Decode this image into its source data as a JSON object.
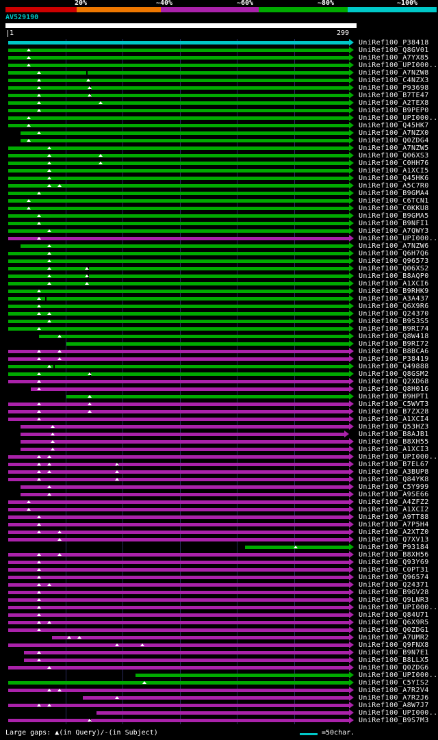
{
  "colors": {
    "red": "#cc0000",
    "orange": "#ee7700",
    "purple": "#aa22aa",
    "green": "#00aa00",
    "cyan": "#00c8c8",
    "white": "#ffffff",
    "grid": "#2b2b5e"
  },
  "scale": {
    "segments": [
      {
        "label": "20%",
        "color": "red"
      },
      {
        "label": "~40%",
        "color": "orange"
      },
      {
        "label": "~60%",
        "color": "purple"
      },
      {
        "label": "~80%",
        "color": "green"
      },
      {
        "label": "~100%",
        "color": "cyan"
      }
    ]
  },
  "query": {
    "name": "AV529190",
    "ruler_start": "1",
    "ruler_end": "299"
  },
  "legend": {
    "gaps_text": "Large gaps: ▲(in Query)/-(in Subject)",
    "grid_text": "=50char."
  },
  "chart_data": {
    "type": "bar",
    "query_length": 299,
    "x_range": [
      1,
      299
    ],
    "identity_bins": [
      "20%",
      "~40%",
      "~60%",
      "~80%",
      "~100%"
    ],
    "grid_spacing_chars": 50,
    "alignments": [
      {
        "label": "UniRef100_P38418",
        "color": "cyan",
        "start": 1,
        "end": 299
      },
      {
        "label": "UniRef100_Q8GV01",
        "color": "green",
        "start": 1,
        "end": 299,
        "gaps": [
          19
        ]
      },
      {
        "label": "UniRef100_A7YX85",
        "color": "green",
        "start": 1,
        "end": 299,
        "gaps": [
          19
        ]
      },
      {
        "label": "UniRef100_UPI000...",
        "color": "green",
        "start": 1,
        "end": 299,
        "gaps": [
          19
        ]
      },
      {
        "label": "UniRef100_A7NZW8",
        "color": "green",
        "start": 1,
        "end": 299,
        "gaps": [
          28
        ],
        "notches": [
          70
        ]
      },
      {
        "label": "UniRef100_C4NZX3",
        "color": "green",
        "start": 1,
        "end": 299,
        "gaps": [
          28,
          71
        ]
      },
      {
        "label": "UniRef100_P93698",
        "color": "green",
        "start": 1,
        "end": 299,
        "gaps": [
          28,
          72
        ],
        "notches": [
          73
        ]
      },
      {
        "label": "UniRef100_B7TE47",
        "color": "green",
        "start": 1,
        "end": 299,
        "gaps": [
          28,
          72
        ],
        "notches": [
          73
        ]
      },
      {
        "label": "UniRef100_A2TEX8",
        "color": "green",
        "start": 1,
        "end": 299,
        "gaps": [
          28,
          82
        ]
      },
      {
        "label": "UniRef100_B9PEP0",
        "color": "green",
        "start": 1,
        "end": 299,
        "gaps": [
          28
        ]
      },
      {
        "label": "UniRef100_UPI000...",
        "color": "green",
        "start": 1,
        "end": 299,
        "gaps": [
          19
        ]
      },
      {
        "label": "UniRef100_Q45HK7",
        "color": "green",
        "start": 1,
        "end": 299,
        "gaps": [
          19
        ]
      },
      {
        "label": "UniRef100_A7NZX0",
        "color": "green",
        "start": 12,
        "end": 299,
        "gaps": [
          28
        ]
      },
      {
        "label": "UniRef100_Q0ZDG4",
        "color": "green",
        "start": 12,
        "end": 299,
        "gaps": [
          19
        ]
      },
      {
        "label": "UniRef100_A7NZW5",
        "color": "green",
        "start": 1,
        "end": 299,
        "gaps": [
          37
        ]
      },
      {
        "label": "UniRef100_Q06XS3",
        "color": "green",
        "start": 1,
        "end": 299,
        "gaps": [
          37,
          82
        ]
      },
      {
        "label": "UniRef100_C0HH76",
        "color": "green",
        "start": 1,
        "end": 299,
        "gaps": [
          37,
          82
        ]
      },
      {
        "label": "UniRef100_A1XCI5",
        "color": "green",
        "start": 1,
        "end": 299,
        "gaps": [
          37
        ]
      },
      {
        "label": "UniRef100_Q45HK6",
        "color": "green",
        "start": 1,
        "end": 299,
        "gaps": [
          37
        ]
      },
      {
        "label": "UniRef100_A5C7R0",
        "color": "green",
        "start": 1,
        "end": 299,
        "gaps": [
          37,
          46
        ]
      },
      {
        "label": "UniRef100_B9GMA4",
        "color": "green",
        "start": 1,
        "end": 299,
        "gaps": [
          28
        ]
      },
      {
        "label": "UniRef100_C6TCN1",
        "color": "green",
        "start": 1,
        "end": 299,
        "gaps": [
          19
        ]
      },
      {
        "label": "UniRef100_C0KKU8",
        "color": "green",
        "start": 1,
        "end": 299,
        "gaps": [
          19
        ]
      },
      {
        "label": "UniRef100_B9GMA5",
        "color": "green",
        "start": 1,
        "end": 299,
        "gaps": [
          28
        ]
      },
      {
        "label": "UniRef100_B9NFI1",
        "color": "green",
        "start": 1,
        "end": 299,
        "gaps": [
          28
        ]
      },
      {
        "label": "UniRef100_A7QWY3",
        "color": "green",
        "start": 1,
        "end": 299,
        "gaps": [
          37
        ]
      },
      {
        "label": "UniRef100_UPI000...",
        "color": "purple",
        "start": 1,
        "end": 299,
        "gaps": [
          28
        ]
      },
      {
        "label": "UniRef100_A7NZW6",
        "color": "green",
        "start": 12,
        "end": 299,
        "gaps": [
          37
        ]
      },
      {
        "label": "UniRef100_Q6H7Q6",
        "color": "green",
        "start": 1,
        "end": 299,
        "gaps": [
          37
        ]
      },
      {
        "label": "UniRef100_Q96573",
        "color": "green",
        "start": 1,
        "end": 299,
        "gaps": [
          37
        ]
      },
      {
        "label": "UniRef100_Q06XS2",
        "color": "green",
        "start": 1,
        "end": 299,
        "gaps": [
          37,
          70
        ],
        "notches": [
          71
        ]
      },
      {
        "label": "UniRef100_B8AQP0",
        "color": "green",
        "start": 1,
        "end": 299,
        "gaps": [
          37,
          70
        ],
        "notches": [
          71
        ]
      },
      {
        "label": "UniRef100_A1XCI6",
        "color": "green",
        "start": 1,
        "end": 299,
        "gaps": [
          37,
          70
        ]
      },
      {
        "label": "UniRef100_B9RHK9",
        "color": "green",
        "start": 1,
        "end": 299,
        "gaps": [
          28
        ]
      },
      {
        "label": "UniRef100_A3A437",
        "color": "green",
        "start": 1,
        "end": 299,
        "gaps": [
          28
        ],
        "notches": [
          34
        ]
      },
      {
        "label": "UniRef100_Q6X9R6",
        "color": "green",
        "start": 1,
        "end": 299,
        "gaps": [
          28
        ]
      },
      {
        "label": "UniRef100_Q24370",
        "color": "green",
        "start": 1,
        "end": 299,
        "gaps": [
          28,
          37
        ]
      },
      {
        "label": "UniRef100_B9S3S5",
        "color": "green",
        "start": 1,
        "end": 299,
        "gaps": [
          37
        ]
      },
      {
        "label": "UniRef100_B9RI74",
        "color": "green",
        "start": 1,
        "end": 299,
        "gaps": [
          28
        ]
      },
      {
        "label": "UniRef100_Q8W418",
        "color": "green",
        "start": 28,
        "end": 299,
        "gaps": [
          46
        ]
      },
      {
        "label": "UniRef100_B9RI72",
        "color": "green",
        "start": 52,
        "end": 299
      },
      {
        "label": "UniRef100_B8BCA6",
        "color": "purple",
        "start": 1,
        "end": 299,
        "gaps": [
          28,
          46
        ]
      },
      {
        "label": "UniRef100_P38419",
        "color": "purple",
        "start": 1,
        "end": 299,
        "gaps": [
          28,
          46
        ]
      },
      {
        "label": "UniRef100_Q49888",
        "color": "green",
        "start": 1,
        "end": 299,
        "gaps": [
          37
        ],
        "notches": [
          41
        ]
      },
      {
        "label": "UniRef100_Q8GSM2",
        "color": "green",
        "start": 1,
        "end": 299,
        "gaps": [
          28,
          72
        ],
        "notches": [
          73
        ]
      },
      {
        "label": "UniRef100_Q2XD68",
        "color": "purple",
        "start": 1,
        "end": 299,
        "gaps": [
          28
        ]
      },
      {
        "label": "UniRef100_Q8H016",
        "color": "purple",
        "start": 21,
        "end": 299,
        "gaps": [
          28
        ]
      },
      {
        "label": "UniRef100_B9HPT1",
        "color": "green",
        "start": 52,
        "end": 299,
        "gaps": [
          72
        ]
      },
      {
        "label": "UniRef100_C5WVT3",
        "color": "purple",
        "start": 1,
        "end": 299,
        "gaps": [
          28,
          72
        ]
      },
      {
        "label": "UniRef100_B7ZX28",
        "color": "purple",
        "start": 1,
        "end": 299,
        "gaps": [
          28,
          72
        ]
      },
      {
        "label": "UniRef100_A1XCI4",
        "color": "purple",
        "start": 1,
        "end": 299,
        "gaps": [
          28
        ]
      },
      {
        "label": "UniRef100_Q53HZ3",
        "color": "purple",
        "start": 12,
        "end": 299,
        "gaps": [
          40
        ]
      },
      {
        "label": "UniRef100_B8AJB1",
        "color": "purple",
        "start": 12,
        "end": 295,
        "gaps": [
          40
        ]
      },
      {
        "label": "UniRef100_B8XH55",
        "color": "purple",
        "start": 12,
        "end": 299,
        "gaps": [
          40
        ]
      },
      {
        "label": "UniRef100_A1XCI3",
        "color": "purple",
        "start": 12,
        "end": 299,
        "gaps": [
          40
        ]
      },
      {
        "label": "UniRef100_UPI000...",
        "color": "purple",
        "start": 1,
        "end": 299,
        "gaps": [
          28,
          37
        ]
      },
      {
        "label": "UniRef100_B7EL67",
        "color": "purple",
        "start": 1,
        "end": 299,
        "gaps": [
          28,
          37,
          96
        ],
        "notches": [
          97
        ]
      },
      {
        "label": "UniRef100_A3BUP8",
        "color": "purple",
        "start": 1,
        "end": 299,
        "gaps": [
          28,
          37,
          96
        ]
      },
      {
        "label": "UniRef100_Q84YK8",
        "color": "purple",
        "start": 1,
        "end": 299,
        "gaps": [
          28,
          96
        ]
      },
      {
        "label": "UniRef100_C5Y999",
        "color": "purple",
        "start": 12,
        "end": 299,
        "gaps": [
          37
        ]
      },
      {
        "label": "UniRef100_A9SE66",
        "color": "purple",
        "start": 12,
        "end": 299,
        "gaps": [
          37
        ]
      },
      {
        "label": "UniRef100_A4ZFZ2",
        "color": "purple",
        "start": 1,
        "end": 299,
        "gaps": [
          19
        ]
      },
      {
        "label": "UniRef100_A1XCI2",
        "color": "purple",
        "start": 1,
        "end": 299,
        "gaps": [
          19
        ]
      },
      {
        "label": "UniRef100_A9TT88",
        "color": "purple",
        "start": 1,
        "end": 299,
        "gaps": [
          28
        ]
      },
      {
        "label": "UniRef100_A7P5H4",
        "color": "purple",
        "start": 1,
        "end": 299,
        "gaps": [
          28
        ]
      },
      {
        "label": "UniRef100_A2XTZ0",
        "color": "purple",
        "start": 1,
        "end": 299,
        "gaps": [
          28,
          46
        ]
      },
      {
        "label": "UniRef100_Q7XV13",
        "color": "purple",
        "start": 1,
        "end": 299,
        "gaps": [
          46
        ]
      },
      {
        "label": "UniRef100_P93184",
        "color": "green",
        "start": 208,
        "end": 299,
        "gaps": [
          252
        ]
      },
      {
        "label": "UniRef100_B8XH56",
        "color": "purple",
        "start": 1,
        "end": 299,
        "gaps": [
          28,
          46
        ]
      },
      {
        "label": "UniRef100_Q93Y69",
        "color": "purple",
        "start": 1,
        "end": 299,
        "gaps": [
          28
        ]
      },
      {
        "label": "UniRef100_C0PT31",
        "color": "purple",
        "start": 1,
        "end": 299,
        "gaps": [
          28
        ]
      },
      {
        "label": "UniRef100_Q96574",
        "color": "purple",
        "start": 1,
        "end": 299,
        "gaps": [
          28
        ]
      },
      {
        "label": "UniRef100_Q24371",
        "color": "purple",
        "start": 1,
        "end": 299,
        "gaps": [
          28,
          37
        ]
      },
      {
        "label": "UniRef100_B9GV28",
        "color": "purple",
        "start": 1,
        "end": 299,
        "gaps": [
          28
        ]
      },
      {
        "label": "UniRef100_Q9LNR3",
        "color": "purple",
        "start": 1,
        "end": 299,
        "gaps": [
          28
        ]
      },
      {
        "label": "UniRef100_UPI000...",
        "color": "purple",
        "start": 1,
        "end": 299,
        "gaps": [
          28
        ]
      },
      {
        "label": "UniRef100_Q84U71",
        "color": "purple",
        "start": 1,
        "end": 299,
        "gaps": [
          28
        ]
      },
      {
        "label": "UniRef100_Q6X9R5",
        "color": "purple",
        "start": 1,
        "end": 299,
        "gaps": [
          28,
          37
        ]
      },
      {
        "label": "UniRef100_Q0ZDG1",
        "color": "purple",
        "start": 1,
        "end": 299,
        "gaps": [
          28
        ]
      },
      {
        "label": "UniRef100_A7UMR2",
        "color": "purple",
        "start": 39,
        "end": 299,
        "gaps": [
          54,
          63
        ]
      },
      {
        "label": "UniRef100_Q9FNX8",
        "color": "purple",
        "start": 1,
        "end": 299,
        "gaps": [
          96,
          118
        ]
      },
      {
        "label": "UniRef100_B9N7E1",
        "color": "purple",
        "start": 15,
        "end": 299,
        "gaps": [
          28
        ]
      },
      {
        "label": "UniRef100_B8LLX5",
        "color": "purple",
        "start": 15,
        "end": 299,
        "gaps": [
          28
        ]
      },
      {
        "label": "UniRef100_Q0ZDG6",
        "color": "purple",
        "start": 1,
        "end": 299,
        "gaps": [
          37
        ]
      },
      {
        "label": "UniRef100_UPI000...",
        "color": "green",
        "start": 112,
        "end": 299
      },
      {
        "label": "UniRef100_C5YIS2",
        "color": "green",
        "start": 1,
        "end": 299,
        "gaps": [
          120
        ]
      },
      {
        "label": "UniRef100_A7R2V4",
        "color": "purple",
        "start": 1,
        "end": 299,
        "gaps": [
          37,
          46
        ]
      },
      {
        "label": "UniRef100_A7R2J6",
        "color": "purple",
        "start": 66,
        "end": 299,
        "gaps": [
          96
        ]
      },
      {
        "label": "UniRef100_A8W7J7",
        "color": "purple",
        "start": 1,
        "end": 299,
        "gaps": [
          28,
          37
        ]
      },
      {
        "label": "UniRef100_UPI000...",
        "color": "purple",
        "start": 78,
        "end": 299
      },
      {
        "label": "UniRef100_B9S7M3",
        "color": "purple",
        "start": 1,
        "end": 299,
        "gaps": [
          72
        ],
        "notches": [
          73
        ]
      }
    ]
  }
}
